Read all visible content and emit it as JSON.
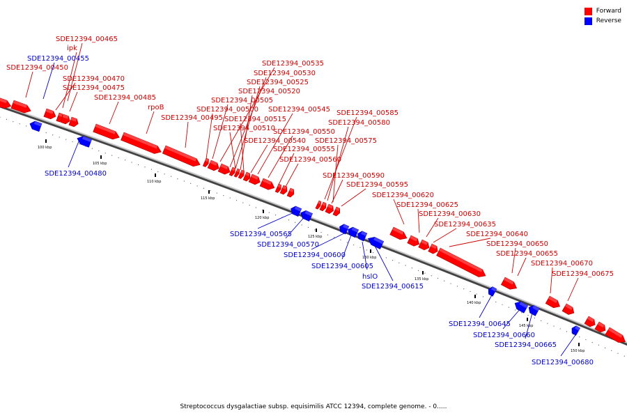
{
  "legend": {
    "items": [
      {
        "label": "Forward",
        "color": "#ff0000"
      },
      {
        "label": "Reverse",
        "color": "#0000ff"
      }
    ]
  },
  "caption": "Streptococcus dysgalactiae subsp. equisimilis ATCC 12394, complete genome. - 0.....",
  "ticks": [
    "100 kbp",
    "105 kbp",
    "110 kbp",
    "115 kbp",
    "120 kbp",
    "125 kbp",
    "130 kbp",
    "135 kbp",
    "140 kbp",
    "145 kbp",
    "150 kbp"
  ],
  "forward_labels": [
    "SDE12394_00465",
    "ipk",
    "SDE12394_00450",
    "SDE12394_00470",
    "SDE12394_00475",
    "SDE12394_00485",
    "rpoB",
    "SDE12394_00535",
    "SDE12394_00530",
    "SDE12394_00525",
    "SDE12394_00520",
    "SDE12394_00505",
    "SDE12394_00500",
    "SDE12394_00495",
    "SDE12394_00545",
    "SDE12394_00515",
    "SDE12394_00510",
    "SDE12394_00550",
    "SDE12394_00540",
    "SDE12394_00555",
    "SDE12394_00560",
    "SDE12394_00585",
    "SDE12394_00580",
    "SDE12394_00575",
    "SDE12394_00590",
    "SDE12394_00595",
    "SDE12394_00620",
    "SDE12394_00625",
    "SDE12394_00630",
    "SDE12394_00635",
    "SDE12394_00640",
    "SDE12394_00650",
    "SDE12394_00655",
    "SDE12394_00670",
    "SDE12394_00675"
  ],
  "reverse_labels": [
    "SDE12394_00455",
    "SDE12394_00480",
    "SDE12394_00565",
    "SDE12394_00570",
    "SDE12394_00600",
    "SDE12394_00605",
    "hslO",
    "SDE12394_00615",
    "SDE12394_00645",
    "SDE12394_00660",
    "SDE12394_00665",
    "SDE12394_00680"
  ]
}
